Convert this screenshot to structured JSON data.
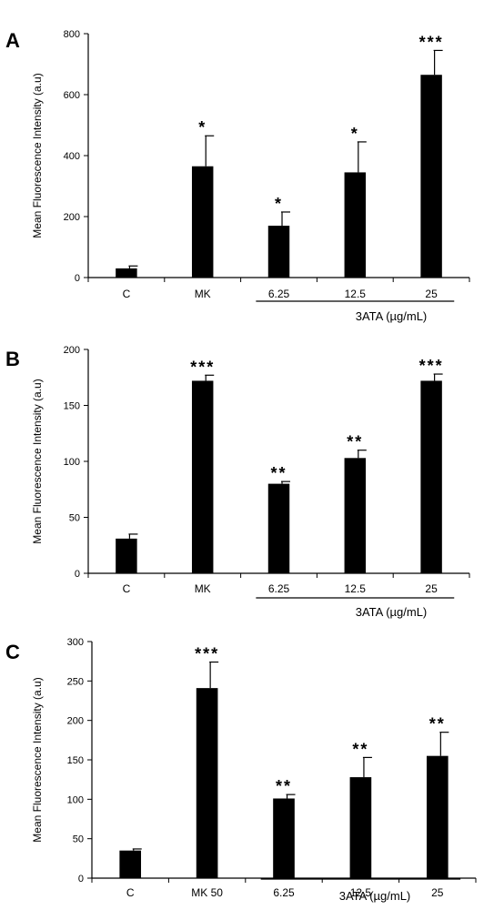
{
  "chart_data": [
    {
      "panel_label": "A",
      "type": "bar",
      "categories": [
        "C",
        "MK",
        "6.25",
        "12.5",
        "25"
      ],
      "values": [
        30,
        365,
        170,
        345,
        665
      ],
      "errors": [
        8,
        100,
        45,
        100,
        80
      ],
      "significance": [
        "",
        "*",
        "*",
        "*",
        "***"
      ],
      "ylabel": "Mean Fluorescence Intensity (a.u)",
      "xlabel": "3ATA (µg/mL)",
      "ylim": [
        0,
        800
      ],
      "yticks": [
        0,
        200,
        400,
        600,
        800
      ],
      "group_bracket_categories": [
        "6.25",
        "12.5",
        "25"
      ]
    },
    {
      "panel_label": "B",
      "type": "bar",
      "categories": [
        "C",
        "MK",
        "6.25",
        "12.5",
        "25"
      ],
      "values": [
        31,
        172,
        80,
        103,
        172
      ],
      "errors": [
        4,
        5,
        2,
        7,
        6
      ],
      "significance": [
        "",
        "***",
        "**",
        "**",
        "***"
      ],
      "ylabel": "Mean Fluorescence Intensity (a.u)",
      "xlabel": "3ATA (µg/mL)",
      "ylim": [
        0,
        200
      ],
      "yticks": [
        0,
        50,
        100,
        150,
        200
      ],
      "group_bracket_categories": [
        "6.25",
        "12.5",
        "25"
      ]
    },
    {
      "panel_label": "C",
      "type": "bar",
      "categories": [
        "C",
        "MK 50",
        "6.25",
        "12.5",
        "25"
      ],
      "values": [
        35,
        241,
        101,
        128,
        155
      ],
      "errors": [
        2,
        33,
        5,
        25,
        30
      ],
      "significance": [
        "",
        "***",
        "**",
        "**",
        "**"
      ],
      "ylabel": "Mean Fluorescence Intensity (a.u)",
      "xlabel": "3ATA (µg/mL)",
      "ylim": [
        0,
        300
      ],
      "yticks": [
        0,
        50,
        100,
        150,
        200,
        250,
        300
      ],
      "group_bracket_categories": [
        "6.25",
        "12.5",
        "25"
      ]
    }
  ]
}
